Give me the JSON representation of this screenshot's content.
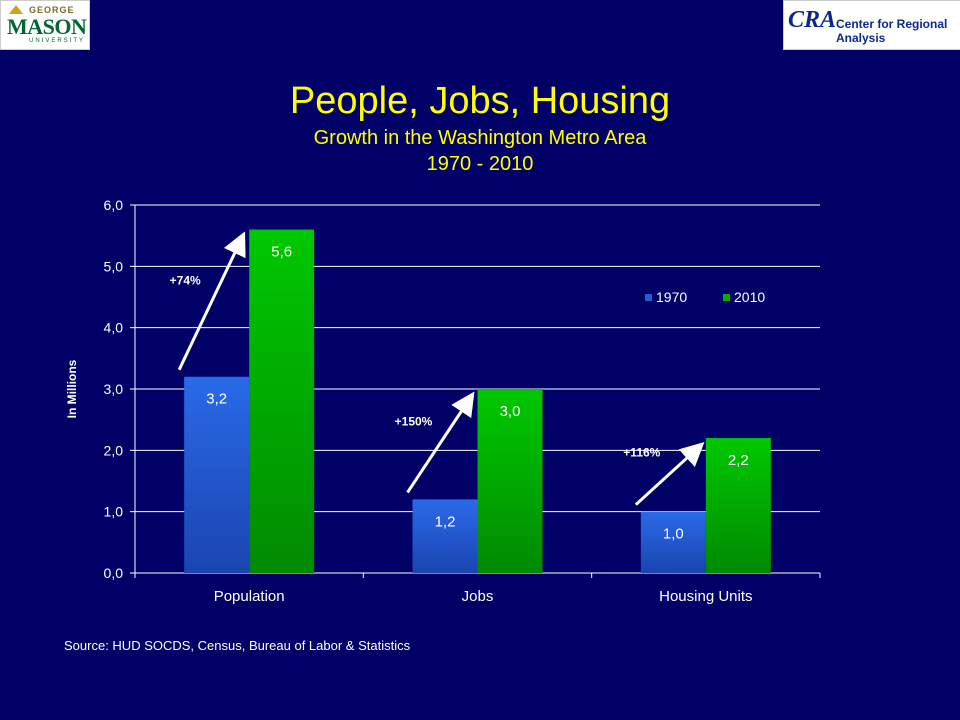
{
  "title": "People, Jobs, Housing",
  "subtitle": "Growth in the Washington Metro Area",
  "subtitle2": "1970 - 2010",
  "logos": {
    "left": "GEORGE MASON UNIVERSITY",
    "right": "CRA Center for Regional Analysis"
  },
  "source": "Source: HUD SOCDS, Census, Bureau of Labor & Statistics",
  "colors": {
    "background": "#000066",
    "title": "#ffff00",
    "series_1970": "#1f5fd8",
    "series_2010": "#00b000",
    "arrow": "#ffffff"
  },
  "chart_data": {
    "type": "bar",
    "categories": [
      "Population",
      "Jobs",
      "Housing Units"
    ],
    "series": [
      {
        "name": "1970",
        "values": [
          3.2,
          1.2,
          1.0
        ],
        "labels": [
          "3,2",
          "1,2",
          "1,0"
        ]
      },
      {
        "name": "2010",
        "values": [
          5.6,
          3.0,
          2.2
        ],
        "labels": [
          "5,6",
          "3,0",
          "2,2"
        ]
      }
    ],
    "growth_labels": [
      "+74%",
      "+150%",
      "+116%"
    ],
    "ylabel": "In Millions",
    "ylim": [
      0,
      6
    ],
    "yticks": [
      "0,0",
      "1,0",
      "2,0",
      "3,0",
      "4,0",
      "5,0",
      "6,0"
    ],
    "grid": true,
    "legend": "top-right"
  }
}
